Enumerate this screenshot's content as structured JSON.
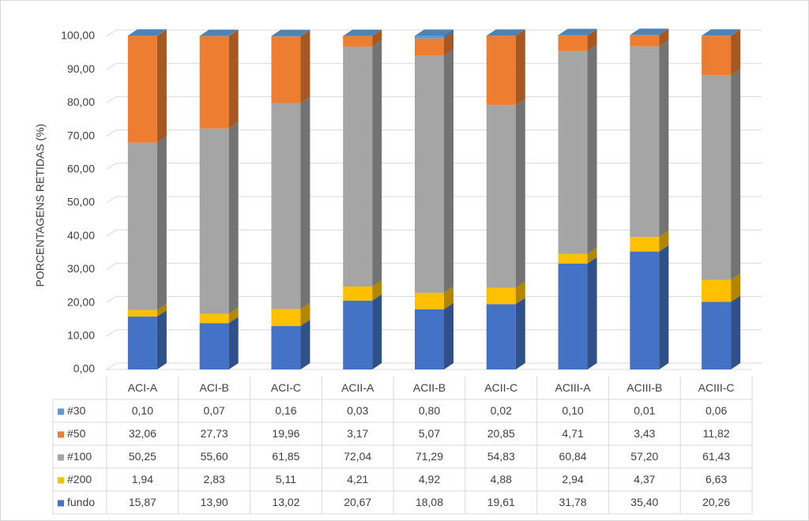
{
  "chart_data": {
    "type": "stacked_bar_3d",
    "y_label": "PORCENTAGENS RETIDAS (%)",
    "categories": [
      "ACI-A",
      "ACI-B",
      "ACI-C",
      "ACII-A",
      "ACII-B",
      "ACII-C",
      "ACIII-A",
      "ACIII-B",
      "ACIII-C"
    ],
    "series": [
      {
        "name": "#30",
        "color": "#5b9bd5",
        "values": [
          0.1,
          0.07,
          0.16,
          0.03,
          0.8,
          0.02,
          0.1,
          0.01,
          0.06
        ],
        "value_labels": [
          "0,10",
          "0,07",
          "0,16",
          "0,03",
          "0,80",
          "0,02",
          "0,10",
          "0,01",
          "0,06"
        ]
      },
      {
        "name": "#50",
        "color": "#ed7d31",
        "values": [
          32.06,
          27.73,
          19.96,
          3.17,
          5.07,
          20.85,
          4.71,
          3.43,
          11.82
        ],
        "value_labels": [
          "32,06",
          "27,73",
          "19,96",
          "3,17",
          "5,07",
          "20,85",
          "4,71",
          "3,43",
          "11,82"
        ]
      },
      {
        "name": "#100",
        "color": "#a5a5a5",
        "values": [
          50.25,
          55.6,
          61.85,
          72.04,
          71.29,
          54.83,
          60.84,
          57.2,
          61.43
        ],
        "value_labels": [
          "50,25",
          "55,60",
          "61,85",
          "72,04",
          "71,29",
          "54,83",
          "60,84",
          "57,20",
          "61,43"
        ]
      },
      {
        "name": "#200",
        "color": "#ffc000",
        "values": [
          1.94,
          2.83,
          5.11,
          4.21,
          4.92,
          4.88,
          2.94,
          4.37,
          6.63
        ],
        "value_labels": [
          "1,94",
          "2,83",
          "5,11",
          "4,21",
          "4,92",
          "4,88",
          "2,94",
          "4,37",
          "6,63"
        ]
      },
      {
        "name": "fundo",
        "color": "#4472c4",
        "values": [
          15.87,
          13.9,
          13.02,
          20.67,
          18.08,
          19.61,
          31.78,
          35.4,
          20.26
        ],
        "value_labels": [
          "15,87",
          "13,90",
          "13,02",
          "20,67",
          "18,08",
          "19,61",
          "31,78",
          "35,40",
          "20,26"
        ]
      }
    ],
    "ylim": [
      0,
      100
    ],
    "yticks": [
      {
        "value": 0,
        "label": "0,00"
      },
      {
        "value": 10,
        "label": "10,00"
      },
      {
        "value": 20,
        "label": "20,00"
      },
      {
        "value": 30,
        "label": "30,00"
      },
      {
        "value": 40,
        "label": "40,00"
      },
      {
        "value": 50,
        "label": "50,00"
      },
      {
        "value": 60,
        "label": "60,00"
      },
      {
        "value": 70,
        "label": "70,00"
      },
      {
        "value": 80,
        "label": "80,00"
      },
      {
        "value": 90,
        "label": "90,00"
      },
      {
        "value": 100,
        "label": "100,00"
      }
    ],
    "grid": true
  }
}
